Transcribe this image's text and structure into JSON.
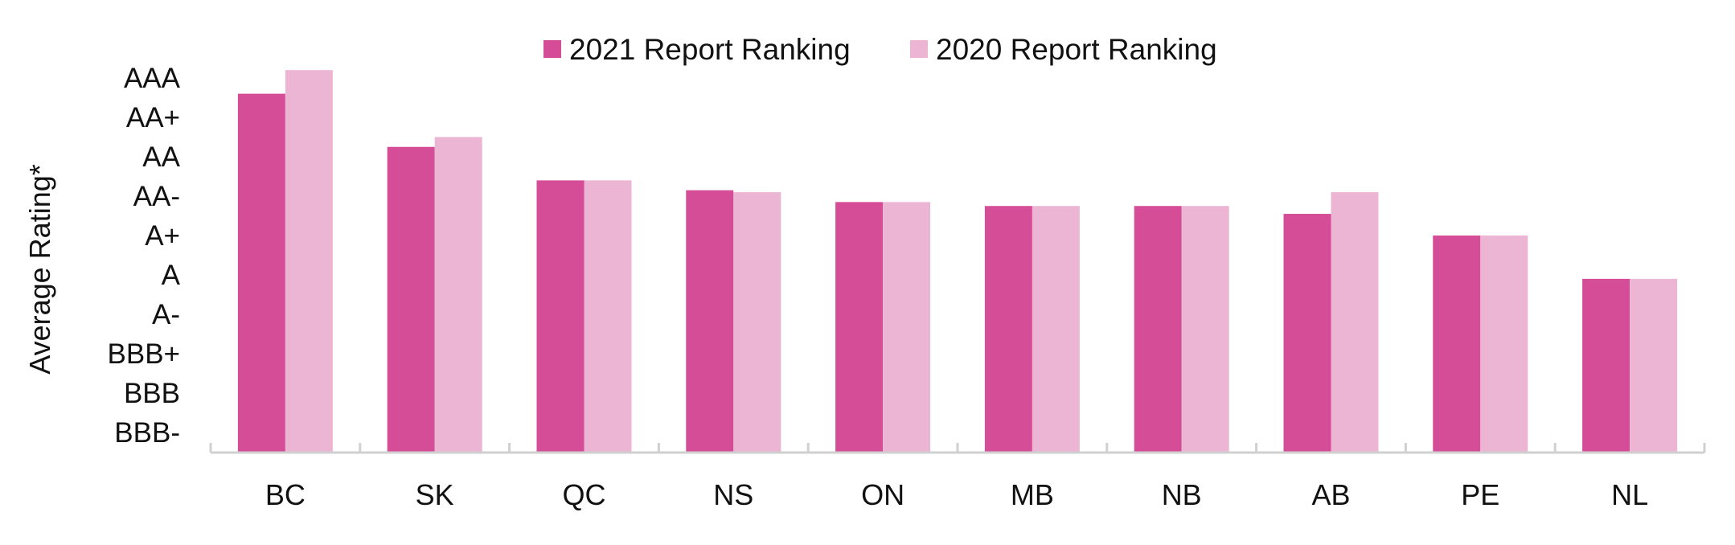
{
  "chart_data": {
    "type": "bar",
    "title": "",
    "ylabel": "Average Rating*",
    "xlabel": "",
    "categories": [
      "BC",
      "SK",
      "QC",
      "NS",
      "ON",
      "MB",
      "NB",
      "AB",
      "PE",
      "NL"
    ],
    "y_tick_labels": [
      "BBB-",
      "BBB",
      "BBB+",
      "A-",
      "A",
      "A+",
      "AA-",
      "AA",
      "AA+",
      "AAA"
    ],
    "y_tick_values": [
      0,
      1,
      2,
      3,
      4,
      5,
      6,
      7,
      8,
      9
    ],
    "ylim": [
      -0.5,
      9.4
    ],
    "series": [
      {
        "name": "2021 Report Ranking",
        "color": "#d44d96",
        "values": [
          8.6,
          7.25,
          6.4,
          6.15,
          5.85,
          5.75,
          5.75,
          5.55,
          5.0,
          3.9
        ]
      },
      {
        "name": "2020 Report Ranking",
        "color": "#ebb5d3",
        "values": [
          9.2,
          7.5,
          6.4,
          6.1,
          5.85,
          5.75,
          5.75,
          6.1,
          5.0,
          3.9
        ]
      }
    ],
    "legend_position": "top-center",
    "grid": false,
    "axis_color": "#d0d0d0"
  }
}
